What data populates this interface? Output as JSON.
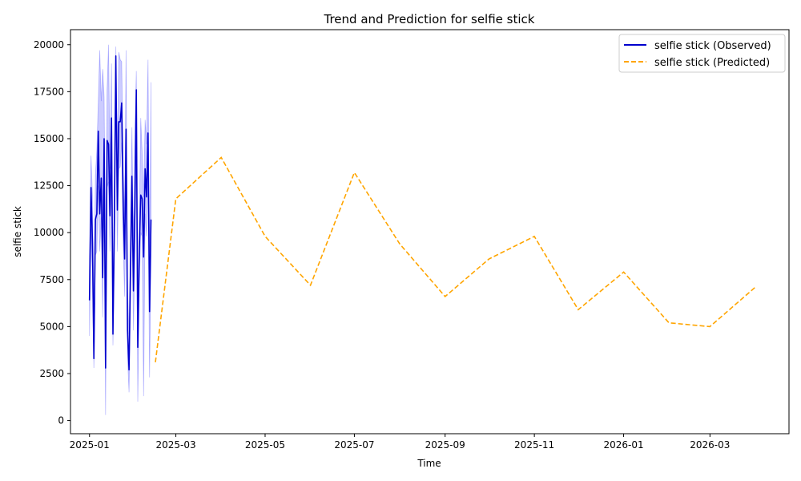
{
  "chart_data": {
    "type": "line",
    "title": "Trend and Prediction for selfie stick",
    "xlabel": "Time",
    "ylabel": "selfie stick",
    "xlim": [
      "2024-12-19",
      "2026-04-24"
    ],
    "ylim": [
      -700,
      20800
    ],
    "grid": false,
    "legend_position": "top-right",
    "x_ticks": [
      "2025-01",
      "2025-03",
      "2025-05",
      "2025-07",
      "2025-09",
      "2025-11",
      "2026-01",
      "2026-03"
    ],
    "y_ticks": [
      0,
      2500,
      5000,
      7500,
      10000,
      12500,
      15000,
      17500,
      20000
    ],
    "colors": {
      "observed": "#0000cd",
      "band": "#0000ff",
      "predicted": "#ffa500"
    },
    "series": [
      {
        "name": "selfie stick (Observed)",
        "style": "solid",
        "x": [
          "2025-01-01",
          "2025-01-02",
          "2025-01-03",
          "2025-01-04",
          "2025-01-05",
          "2025-01-06",
          "2025-01-07",
          "2025-01-08",
          "2025-01-09",
          "2025-01-10",
          "2025-01-11",
          "2025-01-12",
          "2025-01-13",
          "2025-01-14",
          "2025-01-15",
          "2025-01-16",
          "2025-01-17",
          "2025-01-18",
          "2025-01-19",
          "2025-01-20",
          "2025-01-21",
          "2025-01-22",
          "2025-01-23",
          "2025-01-24",
          "2025-01-25",
          "2025-01-26",
          "2025-01-27",
          "2025-01-28",
          "2025-01-29",
          "2025-01-30",
          "2025-01-31",
          "2025-02-01",
          "2025-02-02",
          "2025-02-03",
          "2025-02-04",
          "2025-02-05",
          "2025-02-06",
          "2025-02-07",
          "2025-02-08",
          "2025-02-09",
          "2025-02-10",
          "2025-02-11",
          "2025-02-12",
          "2025-02-13",
          "2025-02-14",
          "2025-02-15"
        ],
        "y": [
          6400,
          12400,
          9500,
          3300,
          10700,
          11000,
          15400,
          11000,
          12900,
          7600,
          15000,
          2800,
          14900,
          14700,
          10900,
          16100,
          4600,
          10600,
          19400,
          11200,
          15900,
          15900,
          16900,
          11400,
          8600,
          15500,
          4800,
          2700,
          8000,
          13000,
          6900,
          11200,
          17600,
          3900,
          9000,
          12000,
          11800,
          8700,
          13400,
          11900,
          15300,
          5800,
          10700,
          null,
          null,
          null
        ],
        "lower": [
          4500,
          10200,
          7600,
          2800,
          8800,
          9000,
          12500,
          9000,
          10800,
          5500,
          12900,
          300,
          12400,
          12700,
          9000,
          13400,
          4000,
          8400,
          16800,
          9000,
          13400,
          13500,
          14800,
          9400,
          6600,
          12700,
          3400,
          1500,
          6400,
          11000,
          4800,
          9000,
          15000,
          1000,
          7000,
          10000,
          9800,
          1300,
          11000,
          9800,
          13200,
          2300,
          8700,
          null,
          null,
          null
        ],
        "upper": [
          8700,
          14100,
          12000,
          5300,
          13000,
          14400,
          16900,
          19700,
          17000,
          18700,
          17200,
          7400,
          17600,
          20000,
          13400,
          19000,
          6800,
          13400,
          19900,
          13800,
          19600,
          19200,
          19100,
          13600,
          10600,
          19700,
          7000,
          4600,
          10000,
          15600,
          9100,
          15400,
          18600,
          5600,
          10400,
          16100,
          14200,
          11900,
          16000,
          14700,
          19200,
          7900,
          18000,
          null,
          null,
          null
        ]
      },
      {
        "name": "selfie stick (Predicted)",
        "style": "dashed",
        "x": [
          "2025-02-15",
          "2025-03-01",
          "2025-04-01",
          "2025-05-01",
          "2025-06-01",
          "2025-07-01",
          "2025-08-01",
          "2025-09-01",
          "2025-10-01",
          "2025-11-01",
          "2025-12-01",
          "2026-01-01",
          "2026-02-01",
          "2026-03-01",
          "2026-04-01"
        ],
        "y": [
          3100,
          11800,
          14000,
          9800,
          7200,
          13200,
          9400,
          6600,
          8600,
          9800,
          5900,
          7900,
          5200,
          5000,
          7100
        ]
      }
    ]
  }
}
